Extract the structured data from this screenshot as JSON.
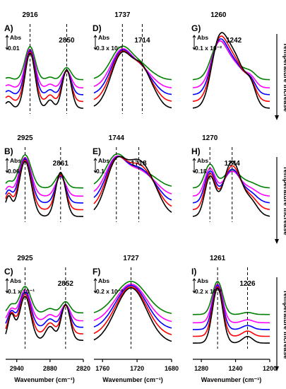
{
  "chart_data": {
    "type": "line",
    "series_colors": [
      "#000000",
      "#ff0000",
      "#0000ff",
      "#ff00ff",
      "#008000"
    ],
    "temperature_label": "Temperature increase",
    "x_axis_label": "Wavenumber (cm⁻¹)",
    "columns": [
      {
        "x_ticks": [
          "2940",
          "2880",
          "2820"
        ],
        "xlim": [
          2960,
          2820
        ]
      },
      {
        "x_ticks": [
          "1760",
          "1720",
          "1680"
        ],
        "xlim": [
          1770,
          1680
        ]
      },
      {
        "x_ticks": [
          "1280",
          "1240",
          "1200"
        ],
        "xlim": [
          1290,
          1200
        ]
      }
    ],
    "panels": [
      {
        "label": "A)",
        "abs": "Abs",
        "scale": "0.01",
        "peaks": [
          "2916",
          "2850"
        ],
        "peak_positions": [
          2916,
          2850
        ],
        "xlim": [
          2960,
          2820
        ],
        "dashed": [
          2916,
          2850
        ],
        "bands": [
          [
            2916,
            9,
            1.0
          ],
          [
            2850,
            8,
            0.7
          ],
          [
            2880,
            6,
            0.15
          ],
          [
            2955,
            6,
            0.12
          ]
        ],
        "base": 0.05
      },
      {
        "label": "D)",
        "abs": "Abs",
        "scale": "0.3 x 10⁻²",
        "peaks": [
          "1737",
          "1714"
        ],
        "peak_positions": [
          1737,
          1714
        ],
        "xlim": [
          1770,
          1680
        ],
        "dashed": [
          1737,
          1714
        ],
        "bands": [
          [
            1737,
            13,
            1.0
          ],
          [
            1714,
            9,
            0.55
          ],
          [
            1700,
            8,
            0.18
          ]
        ],
        "base": 0.05
      },
      {
        "label": "G)",
        "abs": "Abs",
        "scale": "0.1 x 10⁻²",
        "peaks": [
          "1260",
          "1242"
        ],
        "peak_positions": [
          1260,
          1242
        ],
        "xlim": [
          1290,
          1200
        ],
        "dashed": [],
        "bands": [
          [
            1260,
            9,
            1.0
          ],
          [
            1242,
            12,
            0.92
          ],
          [
            1222,
            6,
            0.3
          ]
        ],
        "base": 0.05
      },
      {
        "label": "B)",
        "abs": "Abs",
        "scale": "0.06",
        "peaks": [
          "2925",
          "2861"
        ],
        "peak_positions": [
          2925,
          2861
        ],
        "xlim": [
          2960,
          2820
        ],
        "dashed": [
          2925,
          2861
        ],
        "bands": [
          [
            2925,
            11,
            1.0
          ],
          [
            2861,
            9,
            0.8
          ],
          [
            2955,
            6,
            0.35
          ]
        ],
        "base": 0.05
      },
      {
        "label": "E)",
        "abs": "Abs",
        "scale": "0.1",
        "peaks": [
          "1744",
          "1718"
        ],
        "peak_positions": [
          1744,
          1718
        ],
        "xlim": [
          1770,
          1680
        ],
        "dashed": [
          1744,
          1718
        ],
        "bands": [
          [
            1744,
            12,
            0.95
          ],
          [
            1718,
            12,
            0.85
          ],
          [
            1700,
            10,
            0.3
          ]
        ],
        "base": 0.08
      },
      {
        "label": "H)",
        "abs": "Abs",
        "scale": "0.18",
        "peaks": [
          "1270",
          "1244"
        ],
        "peak_positions": [
          1270,
          1244
        ],
        "xlim": [
          1290,
          1200
        ],
        "dashed": [
          1270,
          1244
        ],
        "bands": [
          [
            1270,
            6,
            0.7
          ],
          [
            1244,
            10,
            1.0
          ],
          [
            1222,
            8,
            0.25
          ]
        ],
        "base": 0.05
      },
      {
        "label": "C)",
        "abs": "Abs",
        "scale": "0.1 x 10⁻¹",
        "peaks": [
          "2925",
          "2852"
        ],
        "peak_positions": [
          2925,
          2852
        ],
        "xlim": [
          2960,
          2820
        ],
        "dashed": [
          2925,
          2852
        ],
        "bands": [
          [
            2925,
            10,
            0.8
          ],
          [
            2852,
            8,
            0.65
          ],
          [
            2950,
            6,
            0.45
          ],
          [
            2880,
            8,
            0.25
          ]
        ],
        "base": 0.1
      },
      {
        "label": "F)",
        "abs": "Abs",
        "scale": "0.2 x 10⁻²",
        "peaks": [
          "1727"
        ],
        "peak_positions": [
          1727
        ],
        "xlim": [
          1770,
          1680
        ],
        "dashed": [
          1727
        ],
        "bands": [
          [
            1727,
            18,
            1.0
          ]
        ],
        "base": 0.05
      },
      {
        "label": "I)",
        "abs": "Abs",
        "scale": "0.2 x 10⁻²",
        "peaks": [
          "1261",
          "1226"
        ],
        "peak_positions": [
          1261,
          1226
        ],
        "xlim": [
          1290,
          1200
        ],
        "dashed": [
          1261,
          1226
        ],
        "bands": [
          [
            1261,
            6,
            1.0
          ],
          [
            1226,
            6,
            0.12
          ]
        ],
        "base": 0.05
      }
    ]
  }
}
